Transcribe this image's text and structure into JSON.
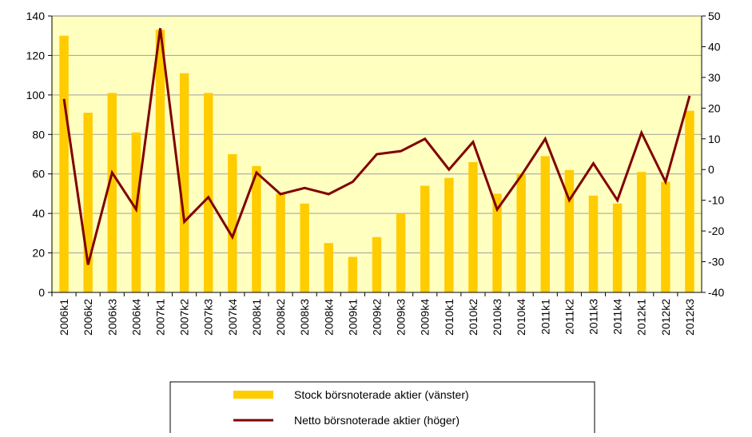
{
  "chart_data": {
    "type": "bar_line",
    "categories": [
      "2006k1",
      "2006k2",
      "2006k3",
      "2006k4",
      "2007k1",
      "2007k2",
      "2007k3",
      "2007k4",
      "2008k1",
      "2008k2",
      "2008k3",
      "2008k4",
      "2009k1",
      "2009k2",
      "2009k3",
      "2009k4",
      "2010k1",
      "2010k2",
      "2010k3",
      "2010k4",
      "2011k1",
      "2011k2",
      "2011k3",
      "2011k4",
      "2012k1",
      "2012k2",
      "2012k3"
    ],
    "series": [
      {
        "name": "Stock börsnoterade aktier (vänster)",
        "color": "#ffcc00",
        "type": "bar",
        "values": [
          130,
          91,
          101,
          81,
          133,
          111,
          101,
          70,
          64,
          50,
          45,
          25,
          18,
          28,
          40,
          54,
          58,
          66,
          50,
          60,
          69,
          62,
          49,
          45,
          61,
          56,
          92
        ]
      },
      {
        "name": "Netto börsnoterade aktier (höger)",
        "color": "#800000",
        "type": "line",
        "axis": "y2",
        "values": [
          23,
          -31,
          -1,
          -13,
          46,
          -17,
          -9,
          -22,
          -1,
          -8,
          -6,
          -8,
          -4,
          5,
          6,
          10,
          0,
          9,
          -13,
          -2,
          10,
          -10,
          2,
          -10,
          12,
          -4,
          24
        ]
      }
    ],
    "ylim": [
      0,
      140
    ],
    "yticks": [
      0,
      20,
      40,
      60,
      80,
      100,
      120,
      140
    ],
    "y2lim": [
      -40,
      50
    ],
    "y2ticks": [
      -40,
      -30,
      -20,
      -10,
      0,
      10,
      20,
      30,
      40,
      50
    ],
    "grid": true
  }
}
